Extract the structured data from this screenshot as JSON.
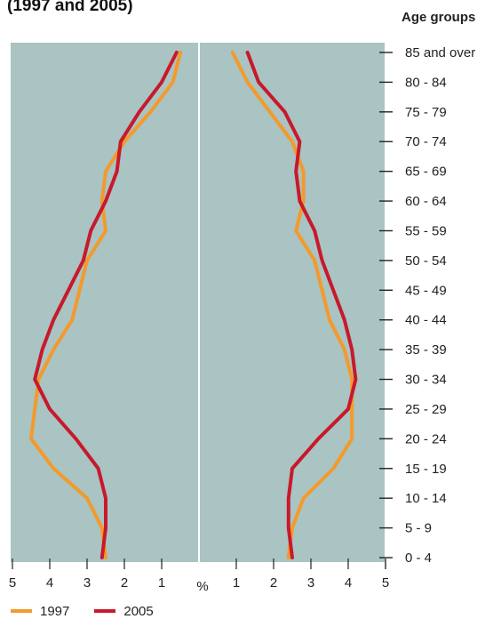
{
  "header": {
    "title": "(1997 and 2005)",
    "age_groups_label": "Age groups"
  },
  "legend": [
    {
      "label": "1997",
      "color": "#f39a2c"
    },
    {
      "label": "2005",
      "color": "#c8192c"
    }
  ],
  "colors": {
    "plot_background": "#a9c4c3",
    "axis": "#222222"
  },
  "chart_data": {
    "type": "line",
    "title": "(1997 and 2005)",
    "xlabel": "%",
    "ylabel": "Age groups",
    "x_ticks_left": [
      "5",
      "4",
      "3",
      "2",
      "1"
    ],
    "x_ticks_right": [
      "1",
      "2",
      "3",
      "4",
      "5"
    ],
    "xlim": [
      0,
      5
    ],
    "categories": [
      "0 - 4",
      "5 - 9",
      "10 - 14",
      "15 - 19",
      "20 - 24",
      "25 - 29",
      "30 - 34",
      "35 - 39",
      "40 - 44",
      "45 - 49",
      "50 - 54",
      "55 - 59",
      "60 - 64",
      "65 - 69",
      "70 - 74",
      "75 - 79",
      "80 - 84",
      "85 and over"
    ],
    "series": [
      {
        "name": "1997",
        "color": "#f39a2c",
        "male": [
          2.5,
          2.6,
          3.0,
          3.9,
          4.5,
          4.4,
          4.3,
          3.9,
          3.4,
          3.2,
          3.0,
          2.5,
          2.6,
          2.5,
          2.0,
          1.3,
          0.7,
          0.5
        ],
        "female": [
          2.4,
          2.5,
          2.8,
          3.6,
          4.1,
          4.1,
          4.1,
          3.9,
          3.5,
          3.3,
          3.1,
          2.6,
          2.8,
          2.8,
          2.5,
          1.9,
          1.3,
          0.9
        ]
      },
      {
        "name": "2005",
        "color": "#c8192c",
        "male": [
          2.6,
          2.5,
          2.5,
          2.7,
          3.3,
          4.0,
          4.4,
          4.2,
          3.9,
          3.5,
          3.1,
          2.9,
          2.5,
          2.2,
          2.1,
          1.6,
          1.0,
          0.6
        ],
        "female": [
          2.5,
          2.4,
          2.4,
          2.5,
          3.2,
          4.0,
          4.2,
          4.1,
          3.9,
          3.6,
          3.3,
          3.1,
          2.7,
          2.6,
          2.7,
          2.3,
          1.6,
          1.3
        ]
      }
    ]
  }
}
